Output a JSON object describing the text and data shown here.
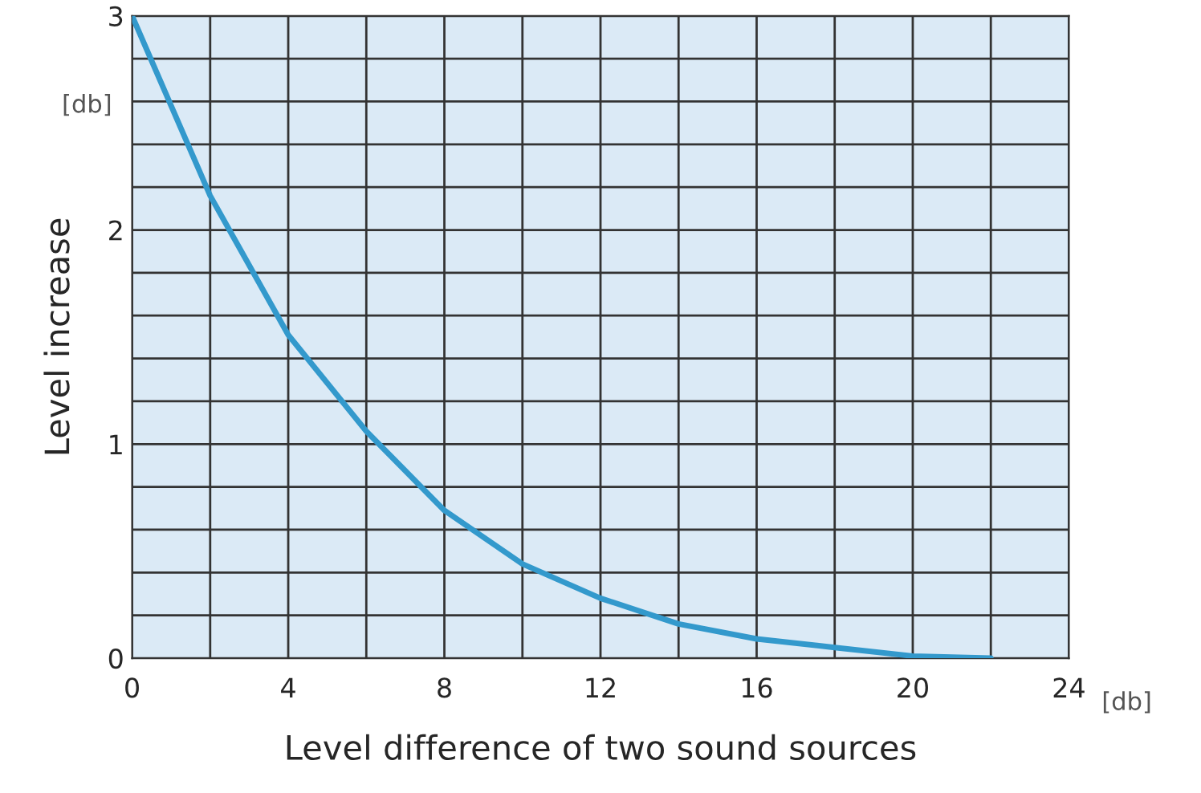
{
  "chart_data": {
    "type": "line",
    "xlabel": "Level difference of two sound sources",
    "ylabel": "Level increase",
    "annotations": [
      "[db]",
      "[db]"
    ],
    "x": [
      0,
      2,
      4,
      6,
      8,
      10,
      12,
      14,
      16,
      18,
      20,
      22
    ],
    "series": [
      {
        "color": "#3399cc",
        "values": [
          3.0,
          2.16,
          1.51,
          1.06,
          0.69,
          0.44,
          0.28,
          0.16,
          0.09,
          0.05,
          0.01,
          0.0
        ]
      }
    ],
    "xlim": [
      0,
      24
    ],
    "ylim": [
      0,
      3
    ],
    "xticks": [
      0,
      {
        "value": 2,
        "label": null
      },
      4,
      {
        "value": 6,
        "label": null
      },
      8,
      {
        "value": 10,
        "label": null
      },
      12,
      {
        "value": 14,
        "label": null
      },
      16,
      {
        "value": 18,
        "label": null
      },
      20,
      {
        "value": 22,
        "label": null
      },
      24
    ],
    "yticks": [
      0,
      {
        "value": 0.2,
        "label": null
      },
      {
        "value": 0.4,
        "label": null
      },
      {
        "value": 0.6,
        "label": null
      },
      {
        "value": 0.8,
        "label": null
      },
      1,
      {
        "value": 1.2,
        "label": null
      },
      {
        "value": 1.4,
        "label": null
      },
      {
        "value": 1.6,
        "label": null
      },
      {
        "value": 1.8,
        "label": null
      },
      2,
      {
        "value": 2.2,
        "label": null
      },
      {
        "value": 2.4,
        "label": null
      },
      {
        "value": 2.6,
        "label": null
      },
      {
        "value": 2.8,
        "label": null
      },
      3
    ],
    "grid": true,
    "legend": false,
    "marker": "none",
    "line_style": "solid"
  }
}
